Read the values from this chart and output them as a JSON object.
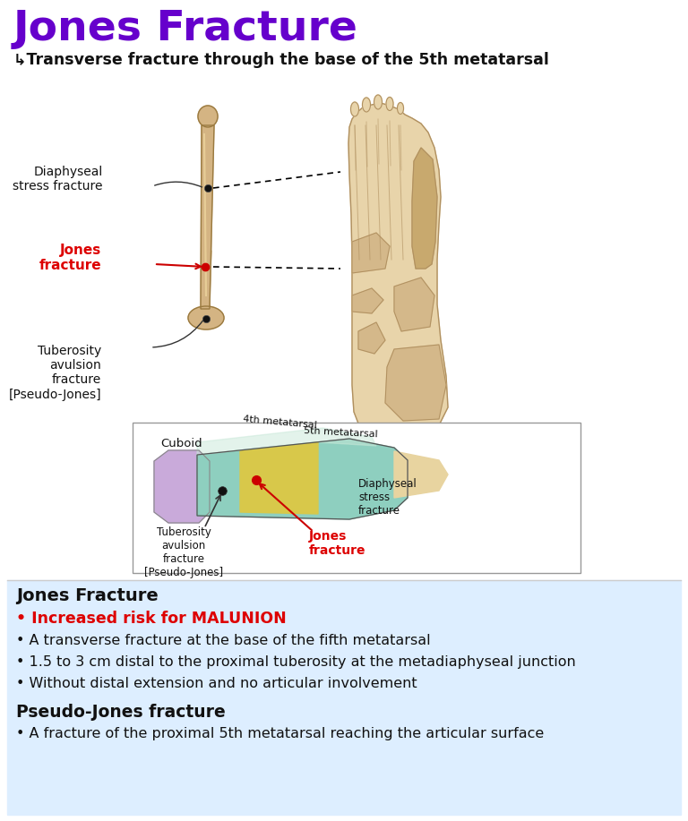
{
  "title": "Jones Fracture",
  "title_color": "#6600cc",
  "subtitle": "↳Transverse fracture through the base of the 5th metatarsal",
  "subtitle_color": "#111111",
  "bg_bottom_color": "#ddeeff",
  "section1_title": "Jones Fracture",
  "section1_title_color": "#111111",
  "bullet_red": "• Increased risk for MALUNION",
  "bullet_red_color": "#dd0000",
  "bullets_black": [
    "• A transverse fracture at the base of the fifth metatarsal",
    "• 1.5 to 3 cm distal to the proximal tuberosity at the metadiaphyseal junction",
    "• Without distal extension and no articular involvement"
  ],
  "section2_title": "Pseudo-Jones fracture",
  "section2_title_color": "#111111",
  "pseudo_bullet": "• A fracture of the proximal 5th metatarsal reaching the articular surface",
  "annotation1": "Diaphyseal\nstress fracture",
  "annotation2_label": "Jones\nfracture",
  "annotation2_color": "#dd0000",
  "annotation3": "Tuberosity\navulsion\nfracture\n[Pseudo-Jones]",
  "diagram_cuboid": "Cuboid",
  "diagram_4th": "4th metatarsal",
  "diagram_5th": "5th metatarsal",
  "diagram_diaphyseal": "Diaphyseal\nstress\nfracture",
  "diagram_jones": "Jones\nfracture",
  "diagram_jones_color": "#dd0000",
  "diagram_pseudo": "Tuberosity\navulsion\nfracture\n[Pseudo-Jones]"
}
